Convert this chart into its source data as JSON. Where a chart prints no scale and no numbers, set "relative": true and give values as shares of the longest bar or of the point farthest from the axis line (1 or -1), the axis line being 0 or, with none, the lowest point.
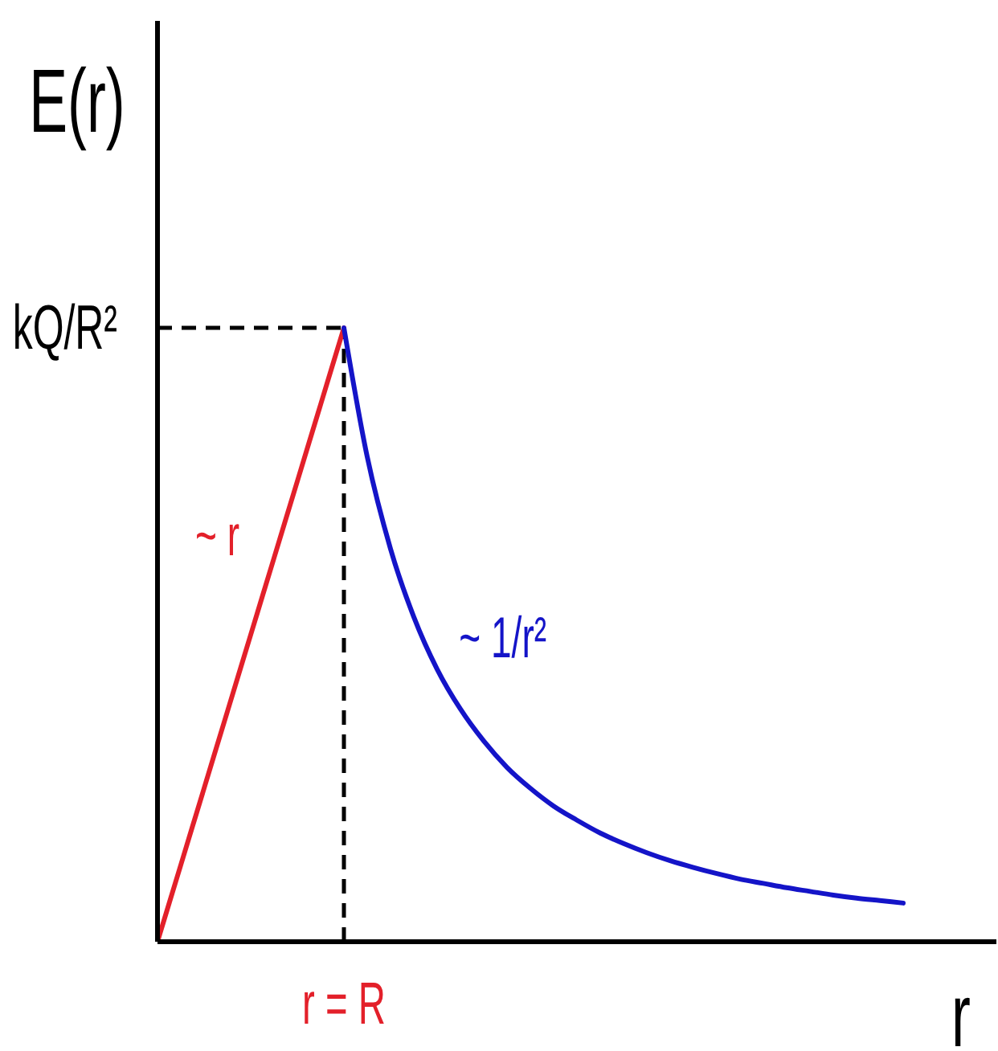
{
  "chart_data": {
    "type": "line",
    "relative": true,
    "xlabel": "r",
    "ylabel": "E(r)",
    "marker": "none",
    "categories": [
      null,
      null,
      null,
      null,
      null,
      null,
      null,
      null,
      null,
      null,
      null,
      null,
      null,
      null,
      null,
      null,
      null,
      null,
      null,
      null,
      null,
      null,
      null,
      null,
      null,
      null,
      null,
      null,
      null,
      null,
      null,
      null,
      null,
      null,
      null,
      null,
      null
    ],
    "series": [
      {
        "name": "~ r",
        "color": "#e3202a",
        "values": [
          0,
          0.125,
          0.25,
          0.375,
          0.5,
          0.625,
          0.75,
          0.875,
          1,
          null,
          null,
          null,
          null,
          null,
          null,
          null,
          null,
          null,
          null,
          null,
          null,
          null,
          null,
          null,
          null,
          null,
          null,
          null,
          null,
          null,
          null,
          null,
          null,
          null,
          null,
          null,
          null
        ]
      },
      {
        "name": "~ 1/r²",
        "color": "#1414c8",
        "values": [
          null,
          null,
          null,
          null,
          null,
          null,
          null,
          null,
          1,
          0.79,
          0.64,
          0.529,
          0.444,
          0.379,
          0.327,
          0.284,
          0.25,
          0.221,
          0.198,
          0.177,
          0.16,
          0.145,
          0.132,
          0.121,
          0.111,
          0.102,
          0.095,
          0.088,
          0.082,
          0.076,
          0.071,
          0.067,
          0.063,
          null,
          null,
          null,
          null
        ]
      }
    ],
    "ref_lines": [
      {
        "axis": "y",
        "value": 1,
        "label": "kQ/R²",
        "color": "#000000",
        "line_style": "dashed"
      },
      {
        "axis": "x",
        "value": "r = R",
        "color": "#000000",
        "line_style": "dashed"
      }
    ]
  }
}
